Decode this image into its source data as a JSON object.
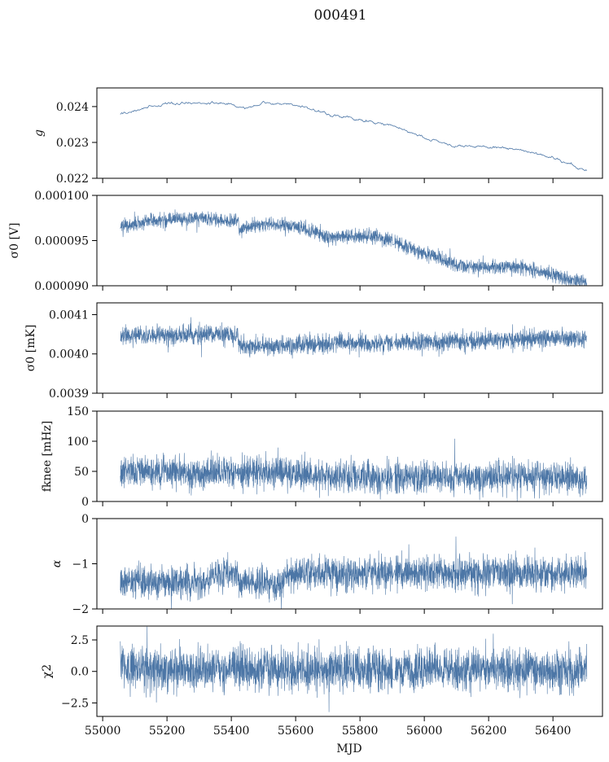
{
  "title": "000491",
  "line_color": "#4c76a6",
  "chart_data": {
    "type": "line",
    "xlabel": "MJD",
    "xlim": [
      54982,
      56554
    ],
    "xticks": [
      55000,
      55200,
      55400,
      55600,
      55800,
      56000,
      56200,
      56400
    ],
    "xtick_labels": [
      "55000",
      "55200",
      "55400",
      "55600",
      "55800",
      "56000",
      "56200",
      "56400"
    ],
    "panels": [
      {
        "ylabel": "g",
        "ylim": [
          0.022,
          0.02452
        ],
        "yticks": [
          0.022,
          0.023,
          0.024
        ],
        "ytick_labels": [
          "0.022",
          "0.023",
          "0.024"
        ],
        "trend": [
          [
            55055,
            0.02378
          ],
          [
            55100,
            0.0239
          ],
          [
            55150,
            0.02402
          ],
          [
            55250,
            0.02413
          ],
          [
            55300,
            0.02412
          ],
          [
            55400,
            0.02405
          ],
          [
            55450,
            0.02393
          ],
          [
            55500,
            0.0241
          ],
          [
            55600,
            0.02405
          ],
          [
            55700,
            0.02378
          ],
          [
            55800,
            0.02362
          ],
          [
            55900,
            0.02345
          ],
          [
            56000,
            0.0231
          ],
          [
            56100,
            0.0229
          ],
          [
            56200,
            0.02287
          ],
          [
            56300,
            0.0228
          ],
          [
            56400,
            0.02257
          ],
          [
            56505,
            0.02222
          ]
        ],
        "noise": 2.5e-05,
        "smooth": true
      },
      {
        "ylabel": "σ0 [V]",
        "ylim": [
          9e-05,
          0.0001
        ],
        "yticks": [
          9e-05,
          9.5e-05,
          0.0001
        ],
        "ytick_labels": [
          "0.000090",
          "0.000095",
          "0.000100"
        ],
        "trend": [
          [
            55055,
            9.65e-05
          ],
          [
            55150,
            9.72e-05
          ],
          [
            55300,
            9.75e-05
          ],
          [
            55420,
            9.72e-05
          ],
          [
            55425,
            9.61e-05
          ],
          [
            55500,
            9.68e-05
          ],
          [
            55600,
            9.66e-05
          ],
          [
            55650,
            9.6e-05
          ],
          [
            55700,
            9.53e-05
          ],
          [
            55850,
            9.55e-05
          ],
          [
            55900,
            9.5e-05
          ],
          [
            55950,
            9.42e-05
          ],
          [
            56000,
            9.36e-05
          ],
          [
            56100,
            9.24e-05
          ],
          [
            56200,
            9.2e-05
          ],
          [
            56300,
            9.21e-05
          ],
          [
            56400,
            9.12e-05
          ],
          [
            56505,
            9.03e-05
          ]
        ],
        "noise": 4e-07
      },
      {
        "ylabel": "σ0 [mK]",
        "ylim": [
          0.0039,
          0.00413
        ],
        "yticks": [
          0.0039,
          0.004,
          0.0041
        ],
        "ytick_labels": [
          "0.0039",
          "0.0040",
          "0.0041"
        ],
        "trend": [
          [
            55055,
            0.004045
          ],
          [
            55420,
            0.00405
          ],
          [
            55425,
            0.00402
          ],
          [
            55700,
            0.004025
          ],
          [
            56000,
            0.00403
          ],
          [
            56505,
            0.00404
          ]
        ],
        "noise": 1.2e-05
      },
      {
        "ylabel": "fknee [mHz]",
        "ylim": [
          0,
          150
        ],
        "yticks": [
          0,
          50,
          100,
          150
        ],
        "ytick_labels": [
          "0",
          "50",
          "100",
          "150"
        ],
        "trend": [
          [
            55055,
            52
          ],
          [
            55200,
            50
          ],
          [
            55300,
            45
          ],
          [
            55420,
            50
          ],
          [
            55500,
            48
          ],
          [
            55700,
            42
          ],
          [
            55900,
            38
          ],
          [
            56100,
            42
          ],
          [
            56300,
            40
          ],
          [
            56505,
            38
          ]
        ],
        "noise": 13
      },
      {
        "ylabel": "α",
        "ylim": [
          -2,
          0
        ],
        "yticks": [
          -2,
          -1,
          0
        ],
        "ytick_labels": [
          "−2",
          "−1",
          "0"
        ],
        "trend": [
          [
            55055,
            -1.4
          ],
          [
            55200,
            -1.42
          ],
          [
            55330,
            -1.4
          ],
          [
            55335,
            -1.2
          ],
          [
            55420,
            -1.22
          ],
          [
            55425,
            -1.42
          ],
          [
            55560,
            -1.45
          ],
          [
            55570,
            -1.22
          ],
          [
            55900,
            -1.2
          ],
          [
            56505,
            -1.22
          ]
        ],
        "noise": 0.18
      },
      {
        "ylabel": "χ2",
        "ylim": [
          -3.57,
          3.6
        ],
        "yticks": [
          -2.5,
          0,
          2.5
        ],
        "ytick_labels": [
          "−2.5",
          "0.0",
          "2.5"
        ],
        "trend": [
          [
            55055,
            0.2
          ],
          [
            56505,
            0.1
          ]
        ],
        "noise": 0.85
      }
    ]
  }
}
